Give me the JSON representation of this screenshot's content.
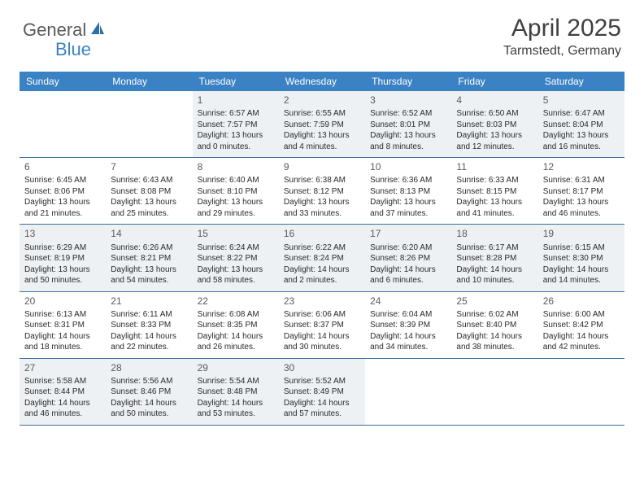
{
  "logo": {
    "general": "General",
    "blue": "Blue"
  },
  "title": "April 2025",
  "location": "Tarmstedt, Germany",
  "colors": {
    "header_bg": "#3b82c4",
    "header_text": "#ffffff",
    "row_border": "#3b6ea0",
    "shaded_bg": "#eef1f4",
    "text": "#2a2a2a",
    "logo_gray": "#5a5a5a",
    "logo_blue": "#3b82c4"
  },
  "day_names": [
    "Sunday",
    "Monday",
    "Tuesday",
    "Wednesday",
    "Thursday",
    "Friday",
    "Saturday"
  ],
  "weeks": [
    [
      {
        "n": "",
        "sr": "",
        "ss": "",
        "dl": ""
      },
      {
        "n": "",
        "sr": "",
        "ss": "",
        "dl": ""
      },
      {
        "n": "1",
        "sr": "Sunrise: 6:57 AM",
        "ss": "Sunset: 7:57 PM",
        "dl": "Daylight: 13 hours and 0 minutes."
      },
      {
        "n": "2",
        "sr": "Sunrise: 6:55 AM",
        "ss": "Sunset: 7:59 PM",
        "dl": "Daylight: 13 hours and 4 minutes."
      },
      {
        "n": "3",
        "sr": "Sunrise: 6:52 AM",
        "ss": "Sunset: 8:01 PM",
        "dl": "Daylight: 13 hours and 8 minutes."
      },
      {
        "n": "4",
        "sr": "Sunrise: 6:50 AM",
        "ss": "Sunset: 8:03 PM",
        "dl": "Daylight: 13 hours and 12 minutes."
      },
      {
        "n": "5",
        "sr": "Sunrise: 6:47 AM",
        "ss": "Sunset: 8:04 PM",
        "dl": "Daylight: 13 hours and 16 minutes."
      }
    ],
    [
      {
        "n": "6",
        "sr": "Sunrise: 6:45 AM",
        "ss": "Sunset: 8:06 PM",
        "dl": "Daylight: 13 hours and 21 minutes."
      },
      {
        "n": "7",
        "sr": "Sunrise: 6:43 AM",
        "ss": "Sunset: 8:08 PM",
        "dl": "Daylight: 13 hours and 25 minutes."
      },
      {
        "n": "8",
        "sr": "Sunrise: 6:40 AM",
        "ss": "Sunset: 8:10 PM",
        "dl": "Daylight: 13 hours and 29 minutes."
      },
      {
        "n": "9",
        "sr": "Sunrise: 6:38 AM",
        "ss": "Sunset: 8:12 PM",
        "dl": "Daylight: 13 hours and 33 minutes."
      },
      {
        "n": "10",
        "sr": "Sunrise: 6:36 AM",
        "ss": "Sunset: 8:13 PM",
        "dl": "Daylight: 13 hours and 37 minutes."
      },
      {
        "n": "11",
        "sr": "Sunrise: 6:33 AM",
        "ss": "Sunset: 8:15 PM",
        "dl": "Daylight: 13 hours and 41 minutes."
      },
      {
        "n": "12",
        "sr": "Sunrise: 6:31 AM",
        "ss": "Sunset: 8:17 PM",
        "dl": "Daylight: 13 hours and 46 minutes."
      }
    ],
    [
      {
        "n": "13",
        "sr": "Sunrise: 6:29 AM",
        "ss": "Sunset: 8:19 PM",
        "dl": "Daylight: 13 hours and 50 minutes."
      },
      {
        "n": "14",
        "sr": "Sunrise: 6:26 AM",
        "ss": "Sunset: 8:21 PM",
        "dl": "Daylight: 13 hours and 54 minutes."
      },
      {
        "n": "15",
        "sr": "Sunrise: 6:24 AM",
        "ss": "Sunset: 8:22 PM",
        "dl": "Daylight: 13 hours and 58 minutes."
      },
      {
        "n": "16",
        "sr": "Sunrise: 6:22 AM",
        "ss": "Sunset: 8:24 PM",
        "dl": "Daylight: 14 hours and 2 minutes."
      },
      {
        "n": "17",
        "sr": "Sunrise: 6:20 AM",
        "ss": "Sunset: 8:26 PM",
        "dl": "Daylight: 14 hours and 6 minutes."
      },
      {
        "n": "18",
        "sr": "Sunrise: 6:17 AM",
        "ss": "Sunset: 8:28 PM",
        "dl": "Daylight: 14 hours and 10 minutes."
      },
      {
        "n": "19",
        "sr": "Sunrise: 6:15 AM",
        "ss": "Sunset: 8:30 PM",
        "dl": "Daylight: 14 hours and 14 minutes."
      }
    ],
    [
      {
        "n": "20",
        "sr": "Sunrise: 6:13 AM",
        "ss": "Sunset: 8:31 PM",
        "dl": "Daylight: 14 hours and 18 minutes."
      },
      {
        "n": "21",
        "sr": "Sunrise: 6:11 AM",
        "ss": "Sunset: 8:33 PM",
        "dl": "Daylight: 14 hours and 22 minutes."
      },
      {
        "n": "22",
        "sr": "Sunrise: 6:08 AM",
        "ss": "Sunset: 8:35 PM",
        "dl": "Daylight: 14 hours and 26 minutes."
      },
      {
        "n": "23",
        "sr": "Sunrise: 6:06 AM",
        "ss": "Sunset: 8:37 PM",
        "dl": "Daylight: 14 hours and 30 minutes."
      },
      {
        "n": "24",
        "sr": "Sunrise: 6:04 AM",
        "ss": "Sunset: 8:39 PM",
        "dl": "Daylight: 14 hours and 34 minutes."
      },
      {
        "n": "25",
        "sr": "Sunrise: 6:02 AM",
        "ss": "Sunset: 8:40 PM",
        "dl": "Daylight: 14 hours and 38 minutes."
      },
      {
        "n": "26",
        "sr": "Sunrise: 6:00 AM",
        "ss": "Sunset: 8:42 PM",
        "dl": "Daylight: 14 hours and 42 minutes."
      }
    ],
    [
      {
        "n": "27",
        "sr": "Sunrise: 5:58 AM",
        "ss": "Sunset: 8:44 PM",
        "dl": "Daylight: 14 hours and 46 minutes."
      },
      {
        "n": "28",
        "sr": "Sunrise: 5:56 AM",
        "ss": "Sunset: 8:46 PM",
        "dl": "Daylight: 14 hours and 50 minutes."
      },
      {
        "n": "29",
        "sr": "Sunrise: 5:54 AM",
        "ss": "Sunset: 8:48 PM",
        "dl": "Daylight: 14 hours and 53 minutes."
      },
      {
        "n": "30",
        "sr": "Sunrise: 5:52 AM",
        "ss": "Sunset: 8:49 PM",
        "dl": "Daylight: 14 hours and 57 minutes."
      },
      {
        "n": "",
        "sr": "",
        "ss": "",
        "dl": ""
      },
      {
        "n": "",
        "sr": "",
        "ss": "",
        "dl": ""
      },
      {
        "n": "",
        "sr": "",
        "ss": "",
        "dl": ""
      }
    ]
  ],
  "shaded_rows": [
    0,
    2,
    4
  ]
}
